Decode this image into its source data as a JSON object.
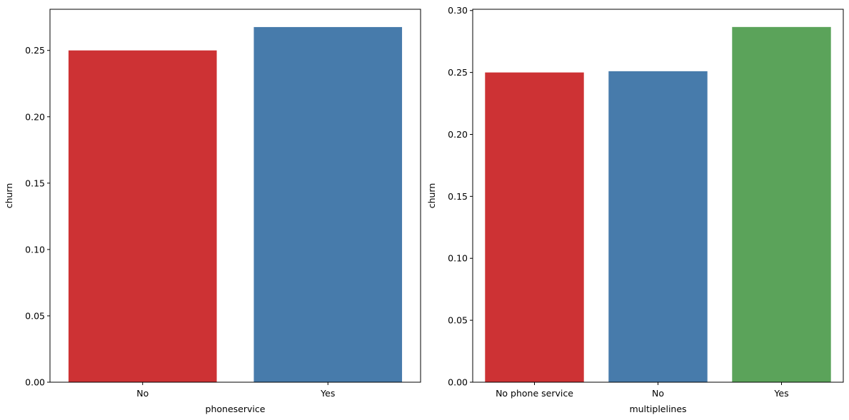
{
  "chart_data": [
    {
      "type": "bar",
      "xlabel": "phoneservice",
      "ylabel": "churn",
      "categories": [
        "No",
        "Yes"
      ],
      "values": [
        0.25,
        0.2676
      ],
      "colors": [
        "#cd3234",
        "#477bab"
      ],
      "ylim": [
        0,
        0.281
      ],
      "yticks": [
        0.0,
        0.05,
        0.1,
        0.15,
        0.2,
        0.25
      ],
      "ytick_labels": [
        "0.00",
        "0.05",
        "0.10",
        "0.15",
        "0.20",
        "0.25"
      ],
      "grid": false
    },
    {
      "type": "bar",
      "xlabel": "multiplelines",
      "ylabel": "churn",
      "categories": [
        "No phone service",
        "No",
        "Yes"
      ],
      "values": [
        0.25,
        0.251,
        0.2867
      ],
      "colors": [
        "#cd3234",
        "#477bab",
        "#5ba35a"
      ],
      "ylim": [
        0,
        0.301
      ],
      "yticks": [
        0.0,
        0.05,
        0.1,
        0.15,
        0.2,
        0.25,
        0.3
      ],
      "ytick_labels": [
        "0.00",
        "0.05",
        "0.10",
        "0.15",
        "0.20",
        "0.25",
        "0.30"
      ],
      "grid": false
    }
  ]
}
